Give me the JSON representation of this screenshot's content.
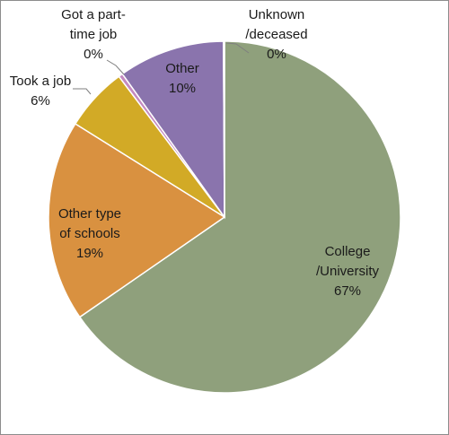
{
  "chart_data": {
    "type": "pie",
    "slices": [
      {
        "label_lines": [
          "College",
          "/University"
        ],
        "value": 67,
        "value_label": "67%",
        "color": "#8fa07c"
      },
      {
        "label_lines": [
          "Other type",
          "of schools"
        ],
        "value": 19,
        "value_label": "19%",
        "color": "#d99140"
      },
      {
        "label_lines": [
          "Took a job"
        ],
        "value": 6,
        "value_label": "6%",
        "color": "#d2aa26"
      },
      {
        "label_lines": [
          "Got a part-",
          "time job"
        ],
        "value": 0.4,
        "value_label": "0%",
        "color": "#c48ac0"
      },
      {
        "label_lines": [
          "Other"
        ],
        "value": 10,
        "value_label": "10%",
        "color": "#8a74ad"
      },
      {
        "label_lines": [
          "Unknown",
          "/deceased"
        ],
        "value": 0.1,
        "value_label": "0%",
        "color": "#b0b0b0"
      }
    ]
  }
}
